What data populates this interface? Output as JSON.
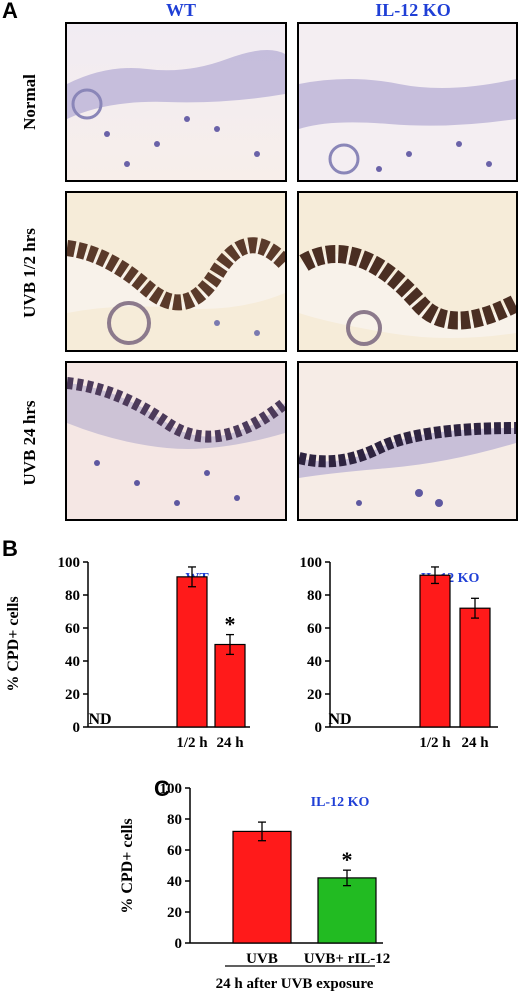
{
  "panel_labels": {
    "a": "A",
    "b": "B",
    "c": "C"
  },
  "columns": [
    "WT",
    "IL-12 KO"
  ],
  "rows": [
    "Normal",
    "UVB 1/2 hrs",
    "UVB 24 hrs"
  ],
  "colors": {
    "header_blue": "#1f3fd6",
    "bar_red": "#ff1a1a",
    "bar_green": "#22bb22"
  },
  "chart_data": [
    {
      "type": "bar",
      "panel": "B",
      "title": "WT",
      "ylabel": "% CPD+ cells",
      "ylim": [
        0,
        100
      ],
      "yticks": [
        0,
        20,
        40,
        60,
        80,
        100
      ],
      "categories": [
        "",
        "1/2 h",
        "24 h"
      ],
      "values": [
        0,
        91,
        50
      ],
      "errors": [
        0,
        6,
        6
      ],
      "annotations": [
        "ND",
        "",
        "*"
      ]
    },
    {
      "type": "bar",
      "panel": "B",
      "title": "IL-12 KO",
      "ylim": [
        0,
        100
      ],
      "yticks": [
        0,
        20,
        40,
        60,
        80,
        100
      ],
      "categories": [
        "",
        "1/2 h",
        "24 h"
      ],
      "values": [
        0,
        92,
        72
      ],
      "errors": [
        0,
        5,
        6
      ],
      "annotations": [
        "ND",
        "",
        ""
      ]
    },
    {
      "type": "bar",
      "panel": "C",
      "title": "IL-12 KO",
      "ylabel": "% CPD+ cells",
      "xlabel": "24 h after UVB exposure",
      "ylim": [
        0,
        100
      ],
      "yticks": [
        0,
        20,
        40,
        60,
        80,
        100
      ],
      "categories": [
        "UVB",
        "UVB+ rIL-12"
      ],
      "values": [
        72,
        42
      ],
      "errors": [
        6,
        5
      ],
      "annotations": [
        "",
        "*"
      ]
    }
  ]
}
